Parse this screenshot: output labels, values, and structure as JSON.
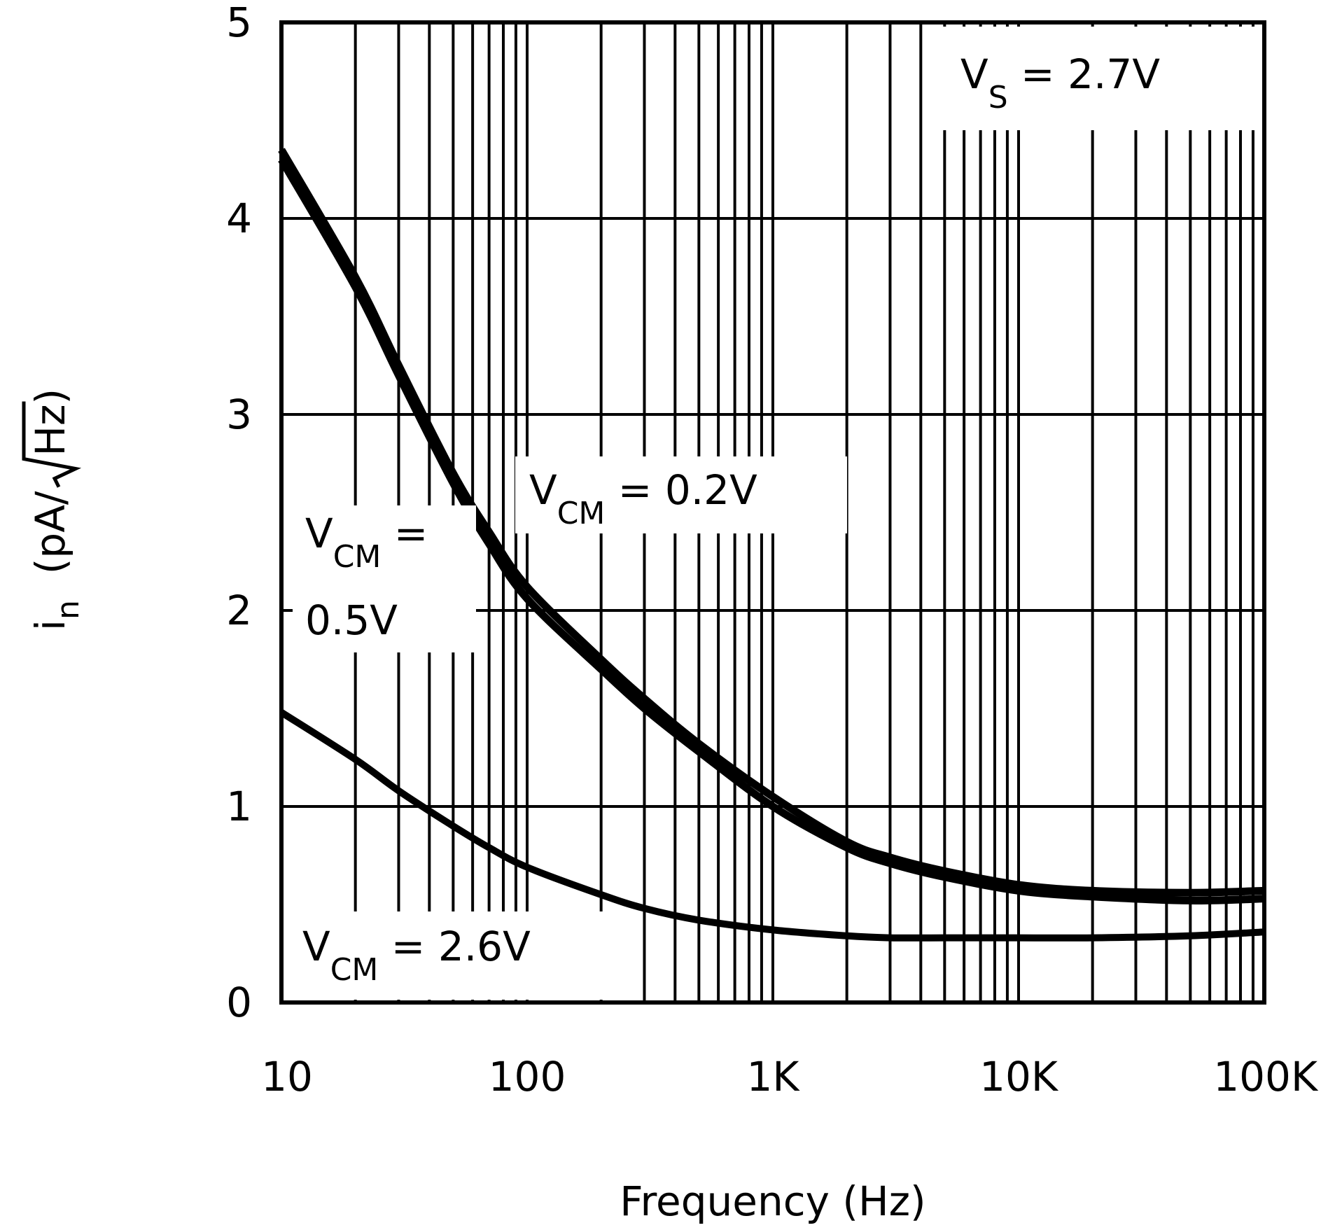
{
  "chart_data": {
    "type": "line",
    "title": "",
    "xlabel": "Frequency (Hz)",
    "ylabel": {
      "main": "i",
      "sub": "n",
      "units_prefix": "(pA/",
      "units_radicand": "Hz",
      "units_suffix": ")"
    },
    "xscale": "log",
    "xlim": [
      10,
      100000
    ],
    "ylim": [
      0,
      5
    ],
    "x_ticks": [
      10,
      100,
      1000,
      10000,
      100000
    ],
    "x_tick_labels": [
      "10",
      "100",
      "1K",
      "10K",
      "100K"
    ],
    "y_ticks": [
      0,
      1,
      2,
      3,
      4,
      5
    ],
    "y_tick_labels": [
      "0",
      "1",
      "2",
      "3",
      "4",
      "5"
    ],
    "grid": true,
    "legend": "none",
    "series": [
      {
        "name": "VCM = 0.2V",
        "x": [
          10,
          20,
          30,
          50,
          70,
          100,
          200,
          300,
          500,
          1000,
          2000,
          3000,
          5000,
          10000,
          20000,
          50000,
          100000
        ],
        "values": [
          4.35,
          3.7,
          3.25,
          2.7,
          2.4,
          2.12,
          1.75,
          1.55,
          1.32,
          1.05,
          0.82,
          0.74,
          0.67,
          0.6,
          0.57,
          0.56,
          0.57
        ]
      },
      {
        "name": "VCM = 0.5V",
        "x": [
          10,
          20,
          30,
          50,
          70,
          100,
          200,
          300,
          500,
          1000,
          2000,
          3000,
          5000,
          10000,
          20000,
          50000,
          100000
        ],
        "values": [
          4.3,
          3.65,
          3.2,
          2.65,
          2.34,
          2.06,
          1.7,
          1.5,
          1.28,
          1.0,
          0.79,
          0.71,
          0.64,
          0.57,
          0.54,
          0.52,
          0.53
        ]
      },
      {
        "name": "VCM = 2.6V",
        "x": [
          10,
          20,
          30,
          50,
          70,
          100,
          200,
          300,
          500,
          1000,
          2000,
          3000,
          5000,
          10000,
          20000,
          50000,
          100000
        ],
        "values": [
          1.48,
          1.24,
          1.08,
          0.9,
          0.79,
          0.69,
          0.55,
          0.48,
          0.42,
          0.37,
          0.34,
          0.33,
          0.33,
          0.33,
          0.33,
          0.34,
          0.36
        ]
      }
    ],
    "annotations": {
      "vs": {
        "main": "V",
        "sub": "S",
        "rest": " = 2.7V"
      },
      "vcm02": {
        "main": "V",
        "sub": "CM",
        "rest": " = 0.2V"
      },
      "vcm05": {
        "main": "V",
        "sub": "CM",
        "rest": " =",
        "line2": "0.5V"
      },
      "vcm26": {
        "main": "V",
        "sub": "CM",
        "rest": " = 2.6V"
      }
    }
  }
}
